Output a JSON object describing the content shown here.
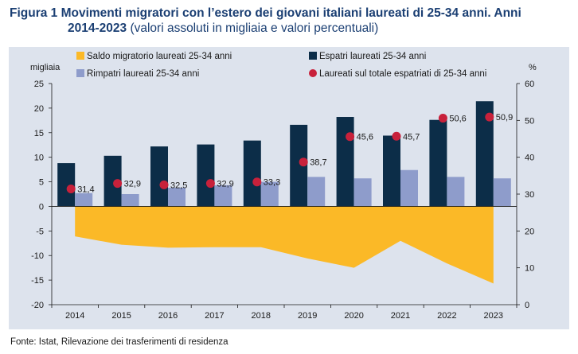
{
  "title": {
    "lead_line1": "Figura 1 Movimenti migratori con l’estero dei giovani italiani laureati di 25-34 anni. Anni",
    "lead_line2": "2014-2023",
    "subtitle": "(valori assoluti in migliaia e valori percentuali)"
  },
  "source": "Fonte: Istat, Rilevazione dei trasferimenti di residenza",
  "colors": {
    "panel": "#dde3ed",
    "saldo": "#fbb927",
    "espatri": "#0c2d48",
    "rimpatri": "#8e9ccb",
    "percent": "#c8213b"
  },
  "chart_data": {
    "type": "bar",
    "categories": [
      "2014",
      "2015",
      "2016",
      "2017",
      "2018",
      "2019",
      "2020",
      "2021",
      "2022",
      "2023"
    ],
    "y_left_label": "migliaia",
    "y_right_label": "%",
    "y_left_range": [
      -20,
      25
    ],
    "y_left_ticks": [
      25,
      20,
      15,
      10,
      5,
      0,
      -5,
      -10,
      -15,
      -20
    ],
    "y_right_range": [
      0,
      60
    ],
    "y_right_ticks": [
      60,
      50,
      40,
      30,
      20,
      10,
      0
    ],
    "grid": false,
    "legend_position": "top",
    "series": [
      {
        "name": "Saldo migratorio laureati 25-34 anni",
        "kind": "area",
        "axis": "left",
        "values": [
          -6.1,
          -7.8,
          -8.4,
          -8.3,
          -8.3,
          -10.6,
          -12.5,
          -7.0,
          -11.6,
          -15.7
        ]
      },
      {
        "name": "Espatri laureati 25-34 anni",
        "kind": "bar",
        "axis": "left",
        "values": [
          8.8,
          10.3,
          12.2,
          12.6,
          13.4,
          16.6,
          18.2,
          14.4,
          17.6,
          21.4
        ]
      },
      {
        "name": "Rimpatri laureati 25-34 anni",
        "kind": "bar",
        "axis": "left",
        "values": [
          2.7,
          2.5,
          3.8,
          4.3,
          5.0,
          6.0,
          5.7,
          7.4,
          6.0,
          5.7
        ]
      },
      {
        "name": "Laureati sul totale espatriati di 25-34 anni",
        "kind": "point",
        "axis": "right",
        "values": [
          31.4,
          32.9,
          32.5,
          32.9,
          33.3,
          38.7,
          45.6,
          45.7,
          50.6,
          50.9
        ],
        "labels": [
          "31,4",
          "32,9",
          "32,5",
          "32,9",
          "33,3",
          "38,7",
          "45,6",
          "45,7",
          "50,6",
          "50,9"
        ]
      }
    ]
  }
}
